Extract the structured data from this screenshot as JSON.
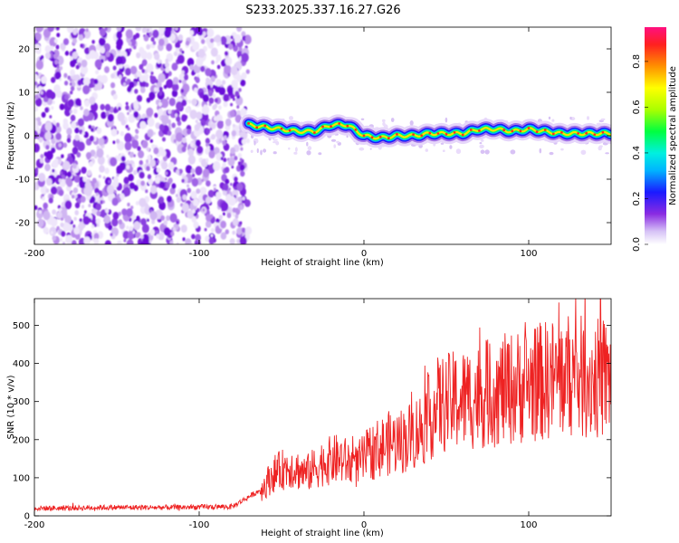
{
  "title": "S233.2025.337.16.27.G26",
  "chart_data": [
    {
      "type": "heatmap",
      "xlabel": "Height of straight line (km)",
      "ylabel": "Frequency (Hz)",
      "xlim": [
        -200,
        150
      ],
      "ylim": [
        -25,
        25
      ],
      "xticks": [
        -200,
        -100,
        0,
        100
      ],
      "xtick_labels": [
        "-200",
        "-100",
        "0",
        "100"
      ],
      "yticks": [
        20,
        10,
        0,
        -10,
        -20
      ],
      "ytick_labels": [
        "20",
        "10",
        "0",
        "-10",
        "-20"
      ],
      "noise_region_x": [
        -200,
        -70
      ],
      "signal_track": {
        "x": [
          -70,
          -60,
          -50,
          -40,
          -30,
          -20,
          -10,
          0,
          10,
          20,
          30,
          40,
          50,
          60,
          70,
          80,
          90,
          100,
          110,
          120,
          130,
          140,
          150
        ],
        "freq": [
          2.5,
          2.0,
          1.5,
          1.0,
          1.0,
          2.5,
          2.5,
          0.0,
          -0.5,
          0.0,
          0.0,
          0.5,
          0.5,
          0.5,
          1.5,
          1.5,
          1.0,
          1.5,
          1.0,
          0.5,
          0.5,
          0.5,
          0.5
        ]
      },
      "colorbar": {
        "label": "Normalized spectral amplitude",
        "range": [
          0.0,
          0.95
        ],
        "ticks": [
          0.0,
          0.2,
          0.4,
          0.6,
          0.8
        ],
        "tick_labels": [
          "0.0",
          "0.2",
          "0.4",
          "0.6",
          "0.8"
        ]
      }
    },
    {
      "type": "line",
      "xlabel": "Height of straight line (km)",
      "ylabel": "SNR (10 * v/v)",
      "xlim": [
        -200,
        150
      ],
      "ylim": [
        0,
        570
      ],
      "xticks": [
        -200,
        -100,
        0,
        100
      ],
      "xtick_labels": [
        "-200",
        "-100",
        "0",
        "100"
      ],
      "yticks": [
        0,
        100,
        200,
        300,
        400,
        500
      ],
      "ytick_labels": [
        "0",
        "100",
        "200",
        "300",
        "400",
        "500"
      ],
      "series": [
        {
          "name": "SNR",
          "color": "#ee2222",
          "x": [
            -200,
            -180,
            -160,
            -140,
            -120,
            -100,
            -80,
            -62,
            -55,
            -45,
            -35,
            -25,
            -15,
            -5,
            5,
            15,
            25,
            35,
            45,
            55,
            65,
            75,
            85,
            95,
            105,
            115,
            125,
            135,
            150
          ],
          "y": [
            20,
            20,
            22,
            22,
            22,
            23,
            24,
            70,
            110,
            130,
            110,
            140,
            150,
            130,
            170,
            190,
            200,
            230,
            290,
            300,
            310,
            320,
            330,
            340,
            350,
            360,
            370,
            360,
            360
          ]
        }
      ]
    }
  ]
}
